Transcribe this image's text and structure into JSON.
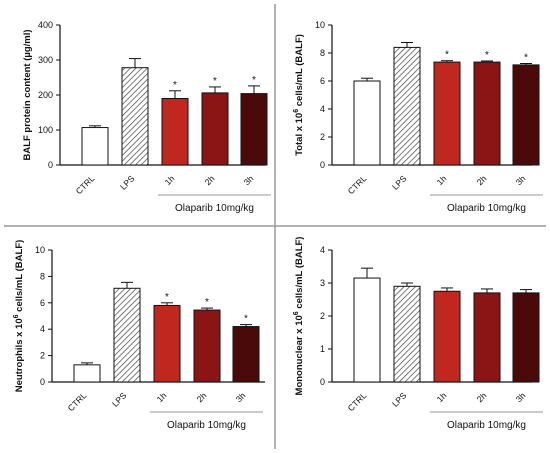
{
  "colors": {
    "ctrl": "#ffffff",
    "lps_hatch": "#444444",
    "h1": "#c0281f",
    "h2": "#8b1414",
    "h3": "#4a0a0a",
    "divider": "#9a9a9a",
    "axis": "#111111"
  },
  "chart_data": [
    {
      "type": "bar",
      "categories": [
        "CTRL",
        "LPS",
        "1h",
        "2h",
        "3h"
      ],
      "values": [
        107,
        278,
        190,
        206,
        204
      ],
      "errors": [
        5,
        26,
        22,
        17,
        22
      ],
      "significant": [
        false,
        false,
        true,
        true,
        true
      ],
      "ylabel_main": "BALF protein content (µg/ml)",
      "ylabel_sup": "",
      "ylabel_rest": "",
      "ylim": [
        0,
        400
      ],
      "yticks": [
        0,
        100,
        200,
        300,
        400
      ],
      "group_label": "Olaparib 10mg/kg",
      "grid": false
    },
    {
      "type": "bar",
      "categories": [
        "CTRL",
        "LPS",
        "1h",
        "2h",
        "3h"
      ],
      "values": [
        6.0,
        8.4,
        7.35,
        7.35,
        7.15
      ],
      "errors": [
        0.2,
        0.35,
        0.1,
        0.08,
        0.1
      ],
      "significant": [
        false,
        false,
        true,
        true,
        true
      ],
      "ylabel_main": "Total x 10",
      "ylabel_sup": "6",
      "ylabel_rest": " cells/mL (BALF)",
      "ylim": [
        0,
        10
      ],
      "yticks": [
        0,
        2,
        4,
        6,
        8,
        10
      ],
      "group_label": "Olaparib 10mg/kg",
      "grid": false
    },
    {
      "type": "bar",
      "categories": [
        "CTRL",
        "LPS",
        "1h",
        "2h",
        "3h"
      ],
      "values": [
        1.3,
        7.1,
        5.8,
        5.45,
        4.2
      ],
      "errors": [
        0.15,
        0.45,
        0.2,
        0.15,
        0.15
      ],
      "significant": [
        false,
        false,
        true,
        true,
        true
      ],
      "ylabel_main": "Neutrophils x 10",
      "ylabel_sup": "6",
      "ylabel_rest": " cells/mL (BALF)",
      "ylim": [
        0,
        10
      ],
      "yticks": [
        0,
        2,
        4,
        6,
        8,
        10
      ],
      "group_label": "Olaparib 10mg/kg",
      "grid": false
    },
    {
      "type": "bar",
      "categories": [
        "CTRL",
        "LPS",
        "1h",
        "2h",
        "3h"
      ],
      "values": [
        3.15,
        2.9,
        2.75,
        2.7,
        2.7
      ],
      "errors": [
        0.3,
        0.1,
        0.1,
        0.12,
        0.1
      ],
      "significant": [
        false,
        false,
        false,
        false,
        false
      ],
      "ylabel_main": "Mononuclear x 10",
      "ylabel_sup": "6",
      "ylabel_rest": " cells/mL (BALF)",
      "ylim": [
        0,
        4
      ],
      "yticks": [
        0,
        1,
        2,
        3,
        4
      ],
      "group_label": "Olaparib 10mg/kg",
      "grid": false
    }
  ]
}
